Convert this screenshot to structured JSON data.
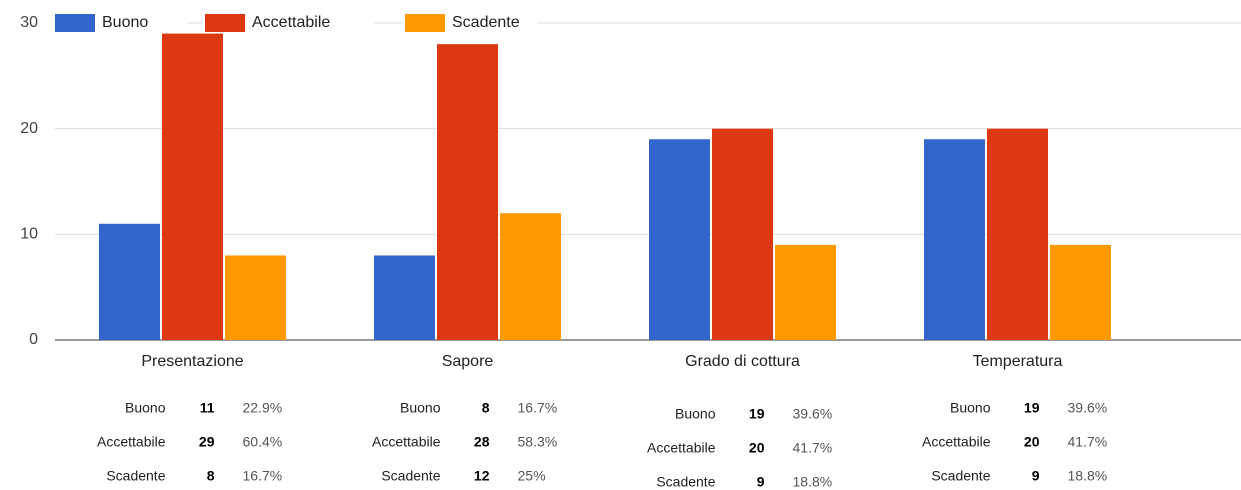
{
  "chart_data": {
    "type": "bar",
    "categories": [
      "Presentazione",
      "Sapore",
      "Grado di cottura",
      "Temperatura"
    ],
    "series": [
      {
        "name": "Buono",
        "color": "#3366cc",
        "values": [
          11,
          8,
          19,
          19
        ],
        "share_labels": [
          "22.9%",
          "16.7%",
          "39.6%",
          "39.6%"
        ]
      },
      {
        "name": "Accettabile",
        "color": "#dc3912",
        "values": [
          29,
          28,
          20,
          20
        ],
        "share_labels": [
          "60.4%",
          "58.3%",
          "41.7%",
          "41.7%"
        ]
      },
      {
        "name": "Scadente",
        "color": "#ff9900",
        "values": [
          8,
          12,
          9,
          9
        ],
        "share_labels": [
          "16.7%",
          "25%",
          "18.8%",
          "18.8%"
        ]
      }
    ],
    "ylim": [
      0,
      30
    ],
    "yticks": [
      0,
      10,
      20,
      30
    ],
    "grid": true,
    "legend": "top"
  }
}
